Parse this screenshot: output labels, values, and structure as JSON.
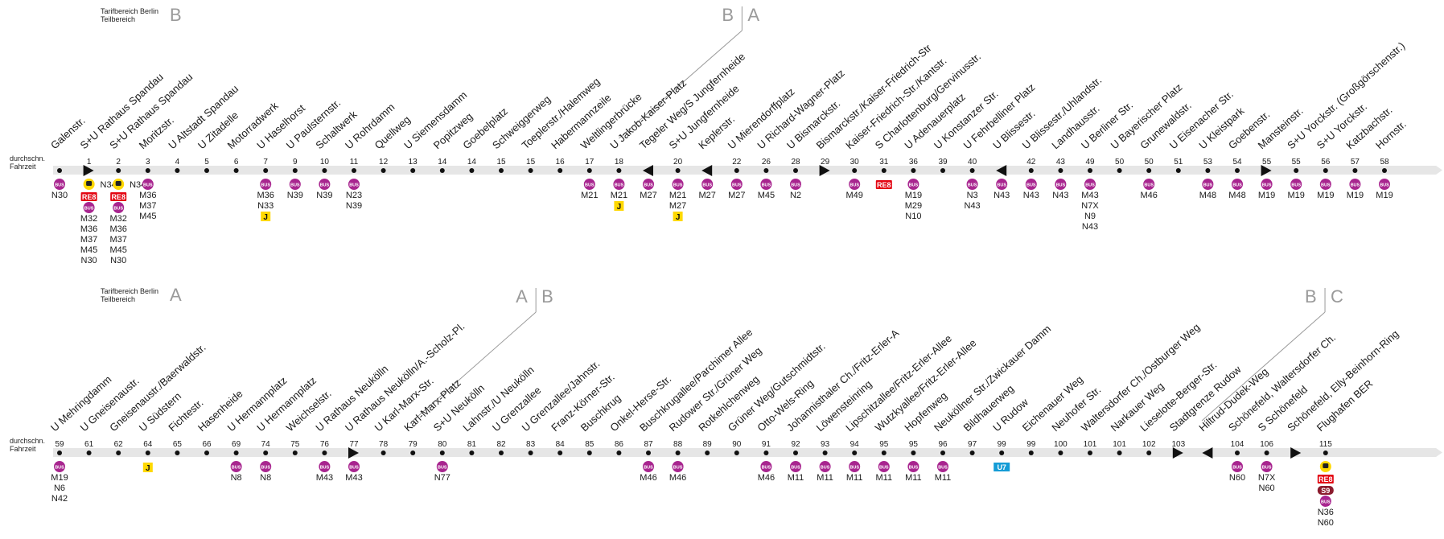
{
  "tarif_label_line1": "Tarifbereich Berlin",
  "tarif_label_line2": "Teilbereich",
  "duration_label_line1": "durchschn.",
  "duration_label_line2": "Fahrzeit",
  "colors": {
    "bus": "#a8258f",
    "re8": "#e30613",
    "s9": "#8b1c2e",
    "u7": "#149cd6",
    "j": "#ffd800",
    "line": "#e6e6e6",
    "zone_letter": "#9a9a9a"
  },
  "icons": {
    "bus": "bus-badge-icon",
    "train": "regional-train-icon",
    "j": "j-ticket-badge-icon",
    "arrow_right": "direction-arrow-right-icon",
    "arrow_left": "direction-arrow-left-icon"
  },
  "rows": [
    {
      "zones": {
        "start": "B",
        "boundary": [
          "B",
          "A"
        ]
      },
      "stops": [
        {
          "name": "Galenstr.",
          "time": "",
          "marker": "",
          "train": false,
          "re8": false,
          "s9": false,
          "u7": false,
          "bus": true,
          "j": false,
          "lines": [
            "N30"
          ]
        },
        {
          "name": "S+U Rathaus Spandau",
          "time": "1",
          "marker": "right",
          "train": true,
          "re8": true,
          "s9": false,
          "u7": false,
          "bus": true,
          "j": false,
          "lines": [
            "M32",
            "M36",
            "M37",
            "M45",
            "N30"
          ],
          "side": "N34"
        },
        {
          "name": "S+U Rathaus Spandau",
          "time": "2",
          "marker": "",
          "train": true,
          "re8": true,
          "s9": false,
          "u7": false,
          "bus": true,
          "j": false,
          "lines": [
            "M32",
            "M36",
            "M37",
            "M45",
            "N30"
          ],
          "side": "N34"
        },
        {
          "name": "Moritzstr.",
          "time": "3",
          "marker": "",
          "train": false,
          "re8": false,
          "s9": false,
          "u7": false,
          "bus": true,
          "j": false,
          "lines": [
            "M36",
            "M37",
            "M45"
          ]
        },
        {
          "name": "U Altstadt Spandau",
          "time": "4",
          "marker": "",
          "bus": false,
          "lines": []
        },
        {
          "name": "U Zitadelle",
          "time": "5",
          "marker": "",
          "bus": false,
          "lines": []
        },
        {
          "name": "Motorradwerk",
          "time": "6",
          "marker": "",
          "bus": false,
          "lines": []
        },
        {
          "name": "U Haselhorst",
          "time": "7",
          "marker": "",
          "bus": true,
          "j": true,
          "lines": [
            "M36",
            "N33"
          ]
        },
        {
          "name": "U Paulsternstr.",
          "time": "9",
          "marker": "",
          "bus": true,
          "lines": [
            "N39"
          ]
        },
        {
          "name": "Schaltwerk",
          "time": "10",
          "marker": "",
          "bus": true,
          "lines": [
            "N39"
          ]
        },
        {
          "name": "U Rohrdamm",
          "time": "11",
          "marker": "",
          "bus": true,
          "lines": [
            "N23",
            "N39"
          ]
        },
        {
          "name": "Quellweg",
          "time": "12",
          "marker": "",
          "bus": false,
          "lines": []
        },
        {
          "name": "U Siemensdamm",
          "time": "13",
          "marker": "",
          "bus": false,
          "lines": []
        },
        {
          "name": "Popitzweg",
          "time": "14",
          "marker": "",
          "bus": false,
          "lines": []
        },
        {
          "name": "Goebelplatz",
          "time": "14",
          "marker": "",
          "bus": false,
          "lines": []
        },
        {
          "name": "Schweiggerweg",
          "time": "15",
          "marker": "",
          "bus": false,
          "lines": []
        },
        {
          "name": "Toeplerstr./Halemweg",
          "time": "15",
          "marker": "",
          "bus": false,
          "lines": []
        },
        {
          "name": "Habermannzeile",
          "time": "16",
          "marker": "",
          "bus": false,
          "lines": []
        },
        {
          "name": "Weltlingerbrücke",
          "time": "17",
          "marker": "",
          "bus": true,
          "lines": [
            "M21"
          ]
        },
        {
          "name": "U Jakob-Kaiser-Platz",
          "time": "18",
          "marker": "",
          "bus": true,
          "j": true,
          "lines": [
            "M21"
          ]
        },
        {
          "name": "Tegeler Weg/S Jungfernheide",
          "time": "",
          "marker": "left",
          "bus": true,
          "lines": [
            "M27"
          ]
        },
        {
          "name": "S+U Jungfernheide",
          "time": "20",
          "marker": "",
          "bus": true,
          "j": true,
          "lines": [
            "M21",
            "M27"
          ]
        },
        {
          "name": "Keplerstr.",
          "time": "",
          "marker": "left",
          "bus": true,
          "lines": [
            "M27"
          ]
        },
        {
          "name": "U Mierendorffplatz",
          "time": "22",
          "marker": "",
          "bus": true,
          "lines": [
            "M27"
          ]
        },
        {
          "name": "U Richard-Wagner-Platz",
          "time": "26",
          "marker": "",
          "bus": true,
          "lines": [
            "M45"
          ]
        },
        {
          "name": "U Bismarckstr.",
          "time": "28",
          "marker": "",
          "bus": true,
          "lines": [
            "N2"
          ]
        },
        {
          "name": "Bismarckstr./Kaiser-Friedrich-Str",
          "time": "29",
          "marker": "right",
          "bus": false,
          "lines": []
        },
        {
          "name": "Kaiser-Friedrich-Str./Kantstr.",
          "time": "30",
          "marker": "",
          "bus": true,
          "lines": [
            "M49"
          ]
        },
        {
          "name": "S Charlottenburg/Gervinusstr.",
          "time": "31",
          "marker": "",
          "re8": true,
          "bus": false,
          "lines": []
        },
        {
          "name": "U Adenauerplatz",
          "time": "36",
          "marker": "",
          "bus": true,
          "lines": [
            "M19",
            "M29",
            "N10"
          ]
        },
        {
          "name": "U Konstanzer Str.",
          "time": "39",
          "marker": "",
          "bus": false,
          "lines": []
        },
        {
          "name": "U Fehrbelliner Platz",
          "time": "40",
          "marker": "",
          "bus": true,
          "lines": [
            "N3",
            "N43"
          ]
        },
        {
          "name": "U Blissestr.",
          "time": "",
          "marker": "left",
          "bus": true,
          "lines": [
            "N43"
          ]
        },
        {
          "name": "U Blissestr./Uhlandstr.",
          "time": "42",
          "marker": "",
          "bus": true,
          "lines": [
            "N43"
          ]
        },
        {
          "name": "Landhausstr.",
          "time": "43",
          "marker": "",
          "bus": true,
          "lines": [
            "N43"
          ]
        },
        {
          "name": "U Berliner Str.",
          "time": "49",
          "marker": "",
          "bus": true,
          "lines": [
            "M43",
            "N7X",
            "N9",
            "N43"
          ]
        },
        {
          "name": "U Bayerischer Platz",
          "time": "50",
          "marker": "",
          "bus": false,
          "lines": []
        },
        {
          "name": "Grunewaldstr.",
          "time": "50",
          "marker": "",
          "bus": true,
          "lines": [
            "M46"
          ]
        },
        {
          "name": "U Eisenacher Str.",
          "time": "51",
          "marker": "",
          "bus": false,
          "lines": []
        },
        {
          "name": "U Kleistpark",
          "time": "53",
          "marker": "",
          "bus": true,
          "lines": [
            "M48"
          ]
        },
        {
          "name": "Goebenstr.",
          "time": "54",
          "marker": "",
          "bus": true,
          "lines": [
            "M48"
          ]
        },
        {
          "name": "Mansteinstr.",
          "time": "55",
          "marker": "right",
          "bus": true,
          "lines": [
            "M19"
          ]
        },
        {
          "name": "S+U Yorckstr. (Großgörschenstr.)",
          "time": "55",
          "marker": "",
          "bus": true,
          "lines": [
            "M19"
          ]
        },
        {
          "name": "S+U Yorckstr.",
          "time": "56",
          "marker": "",
          "bus": true,
          "lines": [
            "M19"
          ]
        },
        {
          "name": "Katzbachstr.",
          "time": "57",
          "marker": "",
          "bus": true,
          "lines": [
            "M19"
          ]
        },
        {
          "name": "Hornstr.",
          "time": "58",
          "marker": "",
          "bus": true,
          "lines": [
            "M19"
          ]
        }
      ]
    },
    {
      "zones": {
        "start": "A",
        "boundary": [
          "A",
          "B"
        ],
        "boundary2": [
          "B",
          "C"
        ]
      },
      "stops": [
        {
          "name": "U Mehringdamm",
          "time": "59",
          "marker": "",
          "bus": true,
          "lines": [
            "M19",
            "N6",
            "N42"
          ]
        },
        {
          "name": "U Gneisenaustr.",
          "time": "61",
          "marker": "",
          "bus": false,
          "lines": []
        },
        {
          "name": "Gneisenaustr./Baerwaldstr.",
          "time": "62",
          "marker": "",
          "bus": false,
          "lines": []
        },
        {
          "name": "U Südstern",
          "time": "64",
          "marker": "",
          "j": true,
          "bus": false,
          "lines": []
        },
        {
          "name": "Fichtestr.",
          "time": "65",
          "marker": "",
          "bus": false,
          "lines": []
        },
        {
          "name": "Hasenheide",
          "time": "66",
          "marker": "",
          "bus": false,
          "lines": []
        },
        {
          "name": "U Hermannplatz",
          "time": "69",
          "marker": "",
          "bus": true,
          "lines": [
            "N8"
          ]
        },
        {
          "name": "U Hermannplatz",
          "time": "74",
          "marker": "",
          "bus": true,
          "lines": [
            "N8"
          ]
        },
        {
          "name": "Weichselstr.",
          "time": "75",
          "marker": "",
          "bus": false,
          "lines": []
        },
        {
          "name": "U Rathaus Neukölln",
          "time": "76",
          "marker": "",
          "bus": true,
          "lines": [
            "M43"
          ]
        },
        {
          "name": "U Rathaus Neukölln/A.-Scholz-Pl.",
          "time": "77",
          "marker": "right",
          "bus": true,
          "lines": [
            "M43"
          ]
        },
        {
          "name": "U Karl-Marx-Str.",
          "time": "78",
          "marker": "",
          "bus": false,
          "lines": []
        },
        {
          "name": "Karl-Marx-Platz",
          "time": "79",
          "marker": "",
          "bus": false,
          "lines": []
        },
        {
          "name": "S+U Neukölln",
          "time": "80",
          "marker": "",
          "bus": true,
          "lines": [
            "N77"
          ]
        },
        {
          "name": "Lahnstr./U Neukölln",
          "time": "81",
          "marker": "",
          "bus": false,
          "lines": []
        },
        {
          "name": "U Grenzallee",
          "time": "82",
          "marker": "",
          "bus": false,
          "lines": []
        },
        {
          "name": "U Grenzallee/Jahnstr.",
          "time": "83",
          "marker": "",
          "bus": false,
          "lines": []
        },
        {
          "name": "Franz-Körner-Str.",
          "time": "84",
          "marker": "",
          "bus": false,
          "lines": []
        },
        {
          "name": "Buschkrug",
          "time": "85",
          "marker": "",
          "bus": false,
          "lines": []
        },
        {
          "name": "Onkel-Herse-Str.",
          "time": "86",
          "marker": "",
          "bus": false,
          "lines": []
        },
        {
          "name": "Buschkrugallee/Parchimer Allee",
          "time": "87",
          "marker": "",
          "bus": true,
          "lines": [
            "M46"
          ]
        },
        {
          "name": "Rudower Str./Grüner Weg",
          "time": "88",
          "marker": "",
          "bus": true,
          "lines": [
            "M46"
          ]
        },
        {
          "name": "Rotkehlchenweg",
          "time": "89",
          "marker": "",
          "bus": false,
          "lines": []
        },
        {
          "name": "Grüner Weg/Gutschmidtstr.",
          "time": "90",
          "marker": "",
          "bus": false,
          "lines": []
        },
        {
          "name": "Otto-Wels-Ring",
          "time": "91",
          "marker": "",
          "bus": true,
          "lines": [
            "M46"
          ]
        },
        {
          "name": "Johannisthaler Ch./Fritz-Erler-A",
          "time": "92",
          "marker": "",
          "bus": true,
          "lines": [
            "M11"
          ]
        },
        {
          "name": "Löwensteinring",
          "time": "93",
          "marker": "",
          "bus": true,
          "lines": [
            "M11"
          ]
        },
        {
          "name": "Lipschitzallee/Fritz-Erler-Allee",
          "time": "94",
          "marker": "",
          "bus": true,
          "lines": [
            "M11"
          ]
        },
        {
          "name": "Wutzkyallee/Fritz-Erler-Allee",
          "time": "95",
          "marker": "",
          "bus": true,
          "lines": [
            "M11"
          ]
        },
        {
          "name": "Hopfenweg",
          "time": "95",
          "marker": "",
          "bus": true,
          "lines": [
            "M11"
          ]
        },
        {
          "name": "Neuköllner Str./Zwickauer Damm",
          "time": "96",
          "marker": "",
          "bus": true,
          "lines": [
            "M11"
          ]
        },
        {
          "name": "Bildhauerweg",
          "time": "97",
          "marker": "",
          "bus": false,
          "lines": []
        },
        {
          "name": "U Rudow",
          "time": "99",
          "marker": "",
          "u7": true,
          "bus": false,
          "lines": []
        },
        {
          "name": "Eichenauer Weg",
          "time": "99",
          "marker": "",
          "bus": false,
          "lines": []
        },
        {
          "name": "Neuhofer Str.",
          "time": "100",
          "marker": "",
          "bus": false,
          "lines": []
        },
        {
          "name": "Waltersdorfer Ch./Ostburger Weg",
          "time": "101",
          "marker": "",
          "bus": false,
          "lines": []
        },
        {
          "name": "Narkauer Weg",
          "time": "101",
          "marker": "",
          "bus": false,
          "lines": []
        },
        {
          "name": "Lieselotte-Berger-Str.",
          "time": "102",
          "marker": "",
          "bus": false,
          "lines": []
        },
        {
          "name": "Stadtgrenze Rudow",
          "time": "103",
          "marker": "right",
          "bus": false,
          "lines": []
        },
        {
          "name": "Hiltrud-Dudek-Weg",
          "time": "",
          "marker": "left",
          "bus": false,
          "lines": []
        },
        {
          "name": "Schönefeld, Waltersdorfer Ch.",
          "time": "104",
          "marker": "",
          "bus": true,
          "lines": [
            "N60"
          ]
        },
        {
          "name": "S Schönefeld",
          "time": "106",
          "marker": "",
          "bus": true,
          "lines": [
            "N7X",
            "N60"
          ]
        },
        {
          "name": "Schönefeld, Elly-Beinhorn-Ring",
          "time": "",
          "marker": "right",
          "bus": false,
          "lines": []
        },
        {
          "name": "Flughafen BER",
          "time": "115",
          "marker": "",
          "train": true,
          "re8": true,
          "s9": true,
          "bus": true,
          "lines": [
            "N36",
            "N60"
          ]
        }
      ]
    }
  ],
  "badges": {
    "bus": "BUS",
    "re8": "RE8",
    "s9": "S9",
    "u7": "U7",
    "j": "J"
  }
}
